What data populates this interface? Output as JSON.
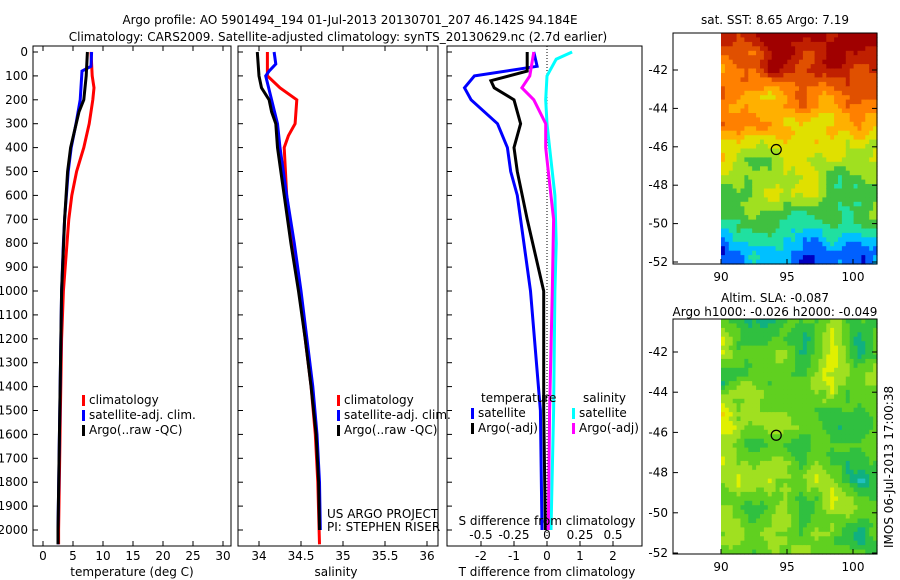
{
  "title_line1": "Argo profile: AO 5901494_194 01-Jul-2013 20130701_207 46.142S 94.184E",
  "title_line2": "Climatology: CARS2009. Satellite-adjusted climatology: synTS_20130629.nc (2.7d earlier)",
  "colors": {
    "red": "#ff0000",
    "blue": "#0000ff",
    "black": "#000000",
    "cyan": "#00ffff",
    "magenta": "#ff00ff"
  },
  "chart_data": [
    {
      "type": "line",
      "xlabel": "temperature (deg C)",
      "xlim": [
        -1.7,
        31.3
      ],
      "ylim": [
        2060,
        0
      ],
      "xticks": [
        "0",
        "5",
        "10",
        "15",
        "20",
        "25",
        "30"
      ],
      "yticks": [
        "0",
        "100",
        "200",
        "300",
        "400",
        "500",
        "600",
        "700",
        "800",
        "900",
        "1000",
        "1100",
        "1200",
        "1300",
        "1400",
        "1500",
        "1600",
        "1700",
        "1800",
        "1900",
        "2000"
      ],
      "legend": [
        "climatology",
        "satellite-adj. clim.",
        "Argo(..raw -QC)"
      ],
      "series": [
        {
          "name": "climatology",
          "color": "red",
          "depth": [
            0,
            100,
            150,
            200,
            300,
            400,
            500,
            600,
            700,
            800,
            900,
            1000,
            1200,
            1500,
            2000,
            2060
          ],
          "values": [
            8.0,
            8.2,
            8.5,
            8.3,
            7.7,
            6.8,
            5.6,
            4.8,
            4.3,
            4.0,
            3.7,
            3.4,
            3.1,
            2.9,
            2.6,
            2.6
          ]
        },
        {
          "name": "satellite-adj. clim.",
          "color": "blue",
          "depth": [
            0,
            60,
            80,
            200,
            300,
            400,
            500,
            600,
            700,
            800,
            1000,
            1500,
            2000,
            2060
          ],
          "values": [
            8.1,
            8.0,
            6.5,
            6.2,
            5.5,
            4.7,
            4.2,
            3.9,
            3.6,
            3.4,
            3.1,
            2.8,
            2.5,
            2.5
          ]
        },
        {
          "name": "Argo(..raw -QC)",
          "color": "black",
          "depth": [
            0,
            100,
            200,
            250,
            400,
            500,
            700,
            1000,
            1500,
            2000,
            2060
          ],
          "values": [
            7.4,
            7.2,
            6.8,
            6.0,
            4.6,
            4.1,
            3.6,
            3.1,
            2.8,
            2.5,
            2.5
          ]
        }
      ]
    },
    {
      "type": "line",
      "xlabel": "salinity",
      "xlim": [
        33.87,
        36.08
      ],
      "ylim": [
        2060,
        0
      ],
      "xticks": [
        "34",
        "34.5",
        "35",
        "35.5",
        "36"
      ],
      "legend": [
        "climatology",
        "satellite-adj. clim.",
        "Argo(..raw -QC)"
      ],
      "annotation": [
        "US ARGO PROJECT",
        "PI: STEPHEN RISER"
      ],
      "series": [
        {
          "name": "climatology",
          "color": "red",
          "depth": [
            0,
            100,
            150,
            200,
            300,
            350,
            400,
            600,
            800,
            1000,
            1200,
            1400,
            1600,
            1800,
            2060
          ],
          "values": [
            34.1,
            34.1,
            34.25,
            34.45,
            34.43,
            34.35,
            34.3,
            34.33,
            34.4,
            34.48,
            34.55,
            34.62,
            34.67,
            34.7,
            34.72
          ]
        },
        {
          "name": "satellite-adj. clim.",
          "color": "blue",
          "depth": [
            0,
            50,
            80,
            100,
            200,
            300,
            400,
            600,
            800,
            1000,
            1200,
            1400,
            1600,
            1800,
            2000
          ],
          "values": [
            34.18,
            34.2,
            34.12,
            34.08,
            34.15,
            34.22,
            34.25,
            34.33,
            34.42,
            34.5,
            34.57,
            34.64,
            34.69,
            34.72,
            34.73
          ]
        },
        {
          "name": "Argo(..raw -QC)",
          "color": "black",
          "depth": [
            0,
            100,
            150,
            200,
            250,
            300,
            400,
            600,
            800,
            1000,
            1200,
            1400,
            1600,
            1800,
            2000
          ],
          "values": [
            33.98,
            34.0,
            34.03,
            34.12,
            34.15,
            34.2,
            34.22,
            34.3,
            34.38,
            34.47,
            34.55,
            34.62,
            34.68,
            34.71,
            34.72
          ]
        }
      ]
    },
    {
      "type": "line",
      "xlabel": "T difference from climatology",
      "x2label": "S difference from climatology",
      "xlim": [
        -3,
        2.9
      ],
      "ylim": [
        2060,
        0
      ],
      "xticks": [
        "-2",
        "-1",
        "0",
        "1",
        "2"
      ],
      "x2ticks": [
        "-0.5",
        "-0.25",
        "0",
        "0.25",
        "0.5"
      ],
      "legend_t_title": "temperature",
      "legend_s_title": "salinity",
      "legend": [
        "satellite",
        "Argo(-adj)",
        "satellite",
        "Argo(-adj)"
      ],
      "series": [
        {
          "name": "T satellite",
          "color": "blue",
          "var": "T",
          "depth": [
            0,
            60,
            100,
            150,
            200,
            300,
            400,
            500,
            600,
            800,
            1000,
            1500,
            2000
          ],
          "values": [
            -0.4,
            -0.3,
            -2.2,
            -2.5,
            -2.3,
            -1.5,
            -1.2,
            -1.1,
            -0.9,
            -0.7,
            -0.5,
            -0.2,
            -0.15
          ]
        },
        {
          "name": "T Argo(-adj)",
          "color": "black",
          "var": "T",
          "depth": [
            0,
            80,
            120,
            150,
            200,
            300,
            400,
            500,
            700,
            1000,
            1500,
            2000
          ],
          "values": [
            -0.6,
            -0.6,
            -1.7,
            -1.6,
            -1.0,
            -0.8,
            -1.0,
            -0.9,
            -0.6,
            -0.1,
            -0.1,
            -0.05
          ]
        },
        {
          "name": "S satellite",
          "color": "cyan",
          "var": "S",
          "depth": [
            0,
            30,
            100,
            200,
            300,
            400,
            600,
            800,
            1000,
            1500,
            2000
          ],
          "values": [
            0.19,
            0.07,
            0.0,
            -0.01,
            0.0,
            0.02,
            0.06,
            0.07,
            0.06,
            0.05,
            0.03
          ]
        },
        {
          "name": "S Argo(-adj)",
          "color": "magenta",
          "var": "S",
          "depth": [
            0,
            100,
            150,
            200,
            300,
            400,
            500,
            700,
            1000,
            1500,
            2000
          ],
          "values": [
            -0.1,
            -0.13,
            -0.19,
            -0.1,
            -0.01,
            -0.01,
            0.01,
            0.05,
            0.04,
            0.02,
            0.01
          ]
        }
      ]
    },
    {
      "type": "heatmap",
      "title": "sat. SST: 8.65  Argo: 7.19",
      "xticks": [
        "90",
        "95",
        "100"
      ],
      "yticks": [
        "-42",
        "-44",
        "-46",
        "-48",
        "-50",
        "-52"
      ],
      "marker": [
        94.184,
        -46.142
      ]
    },
    {
      "type": "heatmap",
      "title_line1": "Altim. SLA: -0.087",
      "title_line2": "Argo h1000: -0.026 h2000: -0.049",
      "xticks": [
        "90",
        "95",
        "100"
      ],
      "yticks": [
        "-42",
        "-44",
        "-46",
        "-48",
        "-50",
        "-52"
      ],
      "marker": [
        94.184,
        -46.142
      ]
    }
  ],
  "footer": "IMOS 06-Jul-2013 17:00:38"
}
